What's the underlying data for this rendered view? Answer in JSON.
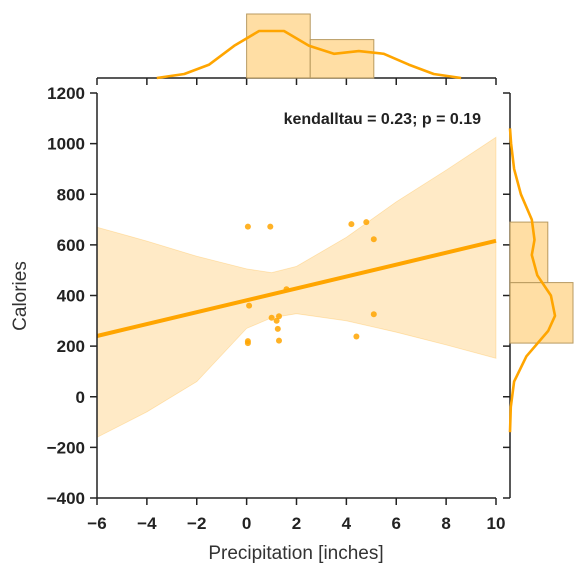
{
  "colors": {
    "accent": "#ffa500",
    "band": "#ffe3b3",
    "hist_fill": "#ffd894",
    "hist_edge": "#b89a60",
    "axis": "#222222"
  },
  "chart_data": {
    "type": "scatter",
    "title": "",
    "xlabel": "Precipitation [inches]",
    "ylabel": "Calories",
    "xlim": [
      -6,
      10
    ],
    "ylim": [
      -400,
      1200
    ],
    "x_ticks": [
      -6,
      -4,
      -2,
      0,
      2,
      4,
      6,
      8,
      10
    ],
    "x_tick_labels": [
      "−6",
      "−4",
      "−2",
      "0",
      "2",
      "4",
      "6",
      "8",
      "10"
    ],
    "y_ticks": [
      -400,
      -200,
      0,
      200,
      400,
      600,
      800,
      1000,
      1200
    ],
    "y_tick_labels": [
      "−400",
      "−200",
      "0",
      "200",
      "400",
      "600",
      "800",
      "1000",
      "1200"
    ],
    "annotation": "kendalltau = 0.23; p = 0.19",
    "points": [
      {
        "x": 0.05,
        "y": 672
      },
      {
        "x": 0.95,
        "y": 672
      },
      {
        "x": 4.2,
        "y": 682
      },
      {
        "x": 4.8,
        "y": 690
      },
      {
        "x": 5.1,
        "y": 622
      },
      {
        "x": 1.6,
        "y": 425
      },
      {
        "x": 0.1,
        "y": 360
      },
      {
        "x": 1.0,
        "y": 312
      },
      {
        "x": 1.3,
        "y": 318
      },
      {
        "x": 1.2,
        "y": 300
      },
      {
        "x": 5.1,
        "y": 326
      },
      {
        "x": 1.25,
        "y": 268
      },
      {
        "x": 4.4,
        "y": 238
      },
      {
        "x": 1.3,
        "y": 222
      },
      {
        "x": 0.05,
        "y": 220
      },
      {
        "x": 0.05,
        "y": 212
      }
    ],
    "regression": {
      "x": [
        -6,
        10
      ],
      "y": [
        240,
        616
      ],
      "ci_x": [
        -6,
        -4,
        -2,
        0,
        1,
        2,
        4,
        6,
        8,
        10
      ],
      "ci_upper": [
        670,
        615,
        555,
        505,
        490,
        515,
        630,
        770,
        895,
        1025
      ],
      "ci_lower": [
        -160,
        -60,
        60,
        270,
        312,
        328,
        300,
        255,
        205,
        152
      ]
    },
    "marginal_x": {
      "bins": [
        [
          0,
          2.55
        ],
        [
          2.55,
          5.1
        ]
      ],
      "counts": [
        10,
        6
      ],
      "kde_x": [
        -3.6,
        -2.5,
        -1.5,
        -0.5,
        0.5,
        1.5,
        2.5,
        3.5,
        4.5,
        5.5,
        6.5,
        7.5,
        8.6
      ],
      "kde_y": [
        0.0,
        0.015,
        0.05,
        0.12,
        0.175,
        0.175,
        0.12,
        0.09,
        0.1,
        0.09,
        0.05,
        0.015,
        0.0
      ]
    },
    "marginal_y": {
      "bins": [
        [
          212,
          451
        ],
        [
          451,
          690
        ]
      ],
      "counts": [
        10,
        6
      ],
      "kde_y": [
        -140,
        -40,
        60,
        160,
        260,
        320,
        400,
        480,
        560,
        620,
        700,
        800,
        900,
        1000,
        1060
      ],
      "kde_x": [
        0.0,
        0.003,
        0.015,
        0.06,
        0.14,
        0.165,
        0.15,
        0.1,
        0.08,
        0.09,
        0.08,
        0.04,
        0.015,
        0.004,
        0.0
      ]
    }
  }
}
